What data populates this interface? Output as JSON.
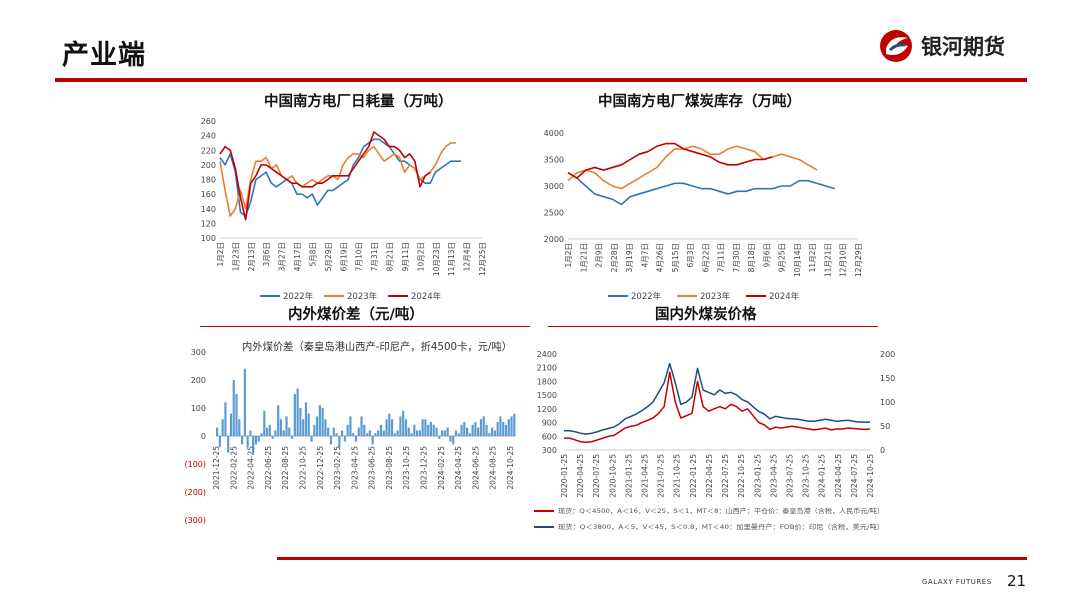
{
  "header": {
    "title": "产业端",
    "logo_text": "银河期货"
  },
  "footer": {
    "brand": "GALAXY FUTURES",
    "page": "21"
  },
  "chart_data": [
    {
      "id": "consumption",
      "type": "line",
      "title": "中国南方电厂日耗量（万吨）",
      "ylim": [
        100,
        260
      ],
      "yticks": [
        "100",
        "120",
        "140",
        "160",
        "180",
        "200",
        "220",
        "240",
        "260"
      ],
      "xticks": [
        "1月2日",
        "1月23日",
        "2月13日",
        "3月6日",
        "3月27日",
        "4月17日",
        "5月8日",
        "5月29日",
        "6月19日",
        "7月10日",
        "7月31日",
        "8月21日",
        "9月11日",
        "10月2日",
        "10月23日",
        "11月13日",
        "12月4日",
        "12月25日"
      ],
      "colors": {
        "2022年": "#2e75b6",
        "2023年": "#ed7d31",
        "2024年": "#c00000"
      },
      "series": [
        {
          "name": "2022年",
          "values": [
            210,
            200,
            215,
            190,
            135,
            130,
            150,
            180,
            185,
            190,
            175,
            170,
            175,
            180,
            175,
            160,
            160,
            155,
            160,
            145,
            155,
            165,
            165,
            170,
            175,
            180,
            200,
            210,
            225,
            230,
            235,
            235,
            230,
            225,
            215,
            205,
            205,
            200,
            195,
            180,
            175,
            175,
            190,
            195,
            200,
            205,
            205,
            205
          ]
        },
        {
          "name": "2023年",
          "values": [
            205,
            165,
            130,
            140,
            165,
            140,
            180,
            205,
            205,
            210,
            195,
            200,
            185,
            180,
            185,
            175,
            170,
            175,
            180,
            175,
            180,
            185,
            185,
            180,
            200,
            210,
            215,
            215,
            210,
            220,
            225,
            215,
            205,
            210,
            215,
            210,
            190,
            200,
            195,
            180,
            185,
            190,
            200,
            215,
            225,
            230,
            230
          ]
        },
        {
          "name": "2024年",
          "values": [
            215,
            225,
            220,
            195,
            155,
            125,
            175,
            185,
            200,
            200,
            195,
            190,
            185,
            180,
            175,
            175,
            170,
            170,
            170,
            175,
            175,
            180,
            185,
            185,
            185,
            185,
            195,
            205,
            215,
            225,
            245,
            240,
            235,
            225,
            225,
            220,
            210,
            215,
            205,
            170,
            185,
            190
          ]
        }
      ]
    },
    {
      "id": "inventory",
      "type": "line",
      "title": "中国南方电厂煤炭库存（万吨）",
      "ylim": [
        2000,
        4000
      ],
      "yticks": [
        "2000",
        "2500",
        "3000",
        "3500",
        "4000"
      ],
      "xticks": [
        "1月2日",
        "1月21日",
        "2月9日",
        "2月28日",
        "3月19日",
        "4月7日",
        "4月26日",
        "5月15日",
        "6月3日",
        "6月22日",
        "7月11日",
        "7月30日",
        "8月18日",
        "9月6日",
        "9月25日",
        "10月14日",
        "11月2日",
        "11月21日",
        "12月10日",
        "12月29日"
      ],
      "colors": {
        "2022年": "#2e75b6",
        "2023年": "#ed7d31",
        "2024年": "#c00000"
      },
      "series": [
        {
          "name": "2022年",
          "values": [
            3250,
            3150,
            3000,
            2850,
            2800,
            2750,
            2650,
            2800,
            2850,
            2900,
            2950,
            3000,
            3050,
            3050,
            3000,
            2950,
            2950,
            2900,
            2850,
            2900,
            2900,
            2950,
            2950,
            2950,
            3000,
            3000,
            3100,
            3100,
            3050,
            3000,
            2950
          ]
        },
        {
          "name": "2023年",
          "values": [
            3100,
            3250,
            3300,
            3250,
            3100,
            3000,
            2950,
            3050,
            3150,
            3250,
            3350,
            3550,
            3700,
            3700,
            3750,
            3700,
            3600,
            3600,
            3700,
            3750,
            3700,
            3650,
            3500,
            3550,
            3600,
            3550,
            3500,
            3400,
            3300
          ]
        },
        {
          "name": "2024年",
          "values": [
            3250,
            3150,
            3300,
            3350,
            3300,
            3350,
            3400,
            3500,
            3600,
            3650,
            3750,
            3800,
            3800,
            3700,
            3650,
            3600,
            3550,
            3450,
            3400,
            3400,
            3450,
            3500,
            3500,
            3550
          ]
        }
      ]
    },
    {
      "id": "spread",
      "type": "bar",
      "title": "内外煤价差（元/吨）",
      "inner_title": "内外煤价差（秦皇岛港山西产-印尼产，折4500卡，元/吨）",
      "ylim": [
        -300,
        300
      ],
      "yticks": [
        "300",
        "200",
        "100",
        "0",
        "(100)",
        "(200)",
        "(300)"
      ],
      "xticks": [
        "2021-12-25",
        "2022-02-25",
        "2022-04-25",
        "2022-06-25",
        "2022-08-25",
        "2022-10-25",
        "2022-12-25",
        "2023-02-25",
        "2023-04-25",
        "2023-06-25",
        "2023-08-25",
        "2023-10-25",
        "2023-12-25",
        "2024-02-25",
        "2024-04-25",
        "2024-06-25",
        "2024-08-25",
        "2024-10-25"
      ],
      "values": [
        30,
        -40,
        60,
        120,
        -60,
        80,
        200,
        150,
        60,
        -30,
        240,
        -40,
        20,
        -60,
        -30,
        -20,
        10,
        90,
        30,
        40,
        -10,
        20,
        110,
        60,
        20,
        70,
        30,
        -10,
        150,
        170,
        100,
        60,
        120,
        80,
        -20,
        40,
        70,
        110,
        100,
        60,
        30,
        -30,
        30,
        10,
        -40,
        20,
        -20,
        40,
        70,
        10,
        -20,
        30,
        70,
        40,
        10,
        20,
        -30,
        10,
        20,
        40,
        20,
        60,
        80,
        60,
        10,
        20,
        70,
        90,
        60,
        30,
        10,
        40,
        20,
        20,
        60,
        60,
        40,
        50,
        40,
        30,
        -10,
        20,
        20,
        30,
        -20,
        -30,
        20,
        10,
        40,
        50,
        30,
        10,
        40,
        50,
        30,
        60,
        70,
        40,
        10,
        30,
        20,
        50,
        70,
        50,
        40,
        60,
        70,
        80
      ]
    },
    {
      "id": "price",
      "type": "line",
      "title": "国内外煤炭价格",
      "ylim_left": [
        300,
        2400
      ],
      "ylim_right": [
        0,
        200
      ],
      "yticks_left": [
        "300",
        "600",
        "900",
        "1200",
        "1500",
        "1800",
        "2100",
        "2400"
      ],
      "yticks_right": [
        "0",
        "50",
        "100",
        "150",
        "200"
      ],
      "xticks": [
        "2020-01-25",
        "2020-04-25",
        "2020-07-25",
        "2020-10-25",
        "2021-01-25",
        "2021-04-25",
        "2021-07-25",
        "2021-10-25",
        "2022-01-25",
        "2022-04-25",
        "2022-07-25",
        "2022-10-25",
        "2023-01-25",
        "2023-04-25",
        "2023-07-25",
        "2023-10-25",
        "2024-01-25",
        "2024-04-25",
        "2024-07-25",
        "2024-10-25"
      ],
      "colors": {
        "domestic": "#c00000",
        "imported": "#1f4e79"
      },
      "series": [
        {
          "name": "秦皇岛港山西产",
          "axis": "left",
          "legend": "现货：Q＜4500，A＜16，V＜25，S＜1，MT＜8：山西产：平仓价：秦皇岛港（含税，人民币元/吨）",
          "values": [
            560,
            560,
            520,
            480,
            470,
            480,
            520,
            560,
            600,
            620,
            700,
            780,
            820,
            840,
            900,
            950,
            1000,
            1100,
            1250,
            2000,
            1350,
            1000,
            1050,
            1100,
            1800,
            1250,
            1150,
            1200,
            1250,
            1200,
            1300,
            1250,
            1150,
            1200,
            1050,
            900,
            850,
            750,
            800,
            780,
            800,
            820,
            800,
            780,
            760,
            740,
            760,
            780,
            740,
            760,
            760,
            780,
            770,
            760,
            750,
            760
          ]
        },
        {
          "name": "印尼产",
          "axis": "right",
          "legend": "现货：Q＜3800，A＜5，V＜45，S＜0.8，MT＜40：加里曼丹产：FOB价：印尼（含税，美元/吨）",
          "values": [
            40,
            40,
            38,
            35,
            33,
            35,
            38,
            42,
            45,
            48,
            55,
            65,
            70,
            75,
            82,
            90,
            100,
            120,
            140,
            180,
            140,
            95,
            100,
            110,
            170,
            125,
            120,
            115,
            125,
            118,
            120,
            115,
            105,
            100,
            90,
            80,
            75,
            65,
            70,
            68,
            66,
            65,
            64,
            62,
            60,
            60,
            62,
            64,
            62,
            60,
            61,
            62,
            60,
            58,
            58,
            58
          ]
        }
      ]
    }
  ]
}
